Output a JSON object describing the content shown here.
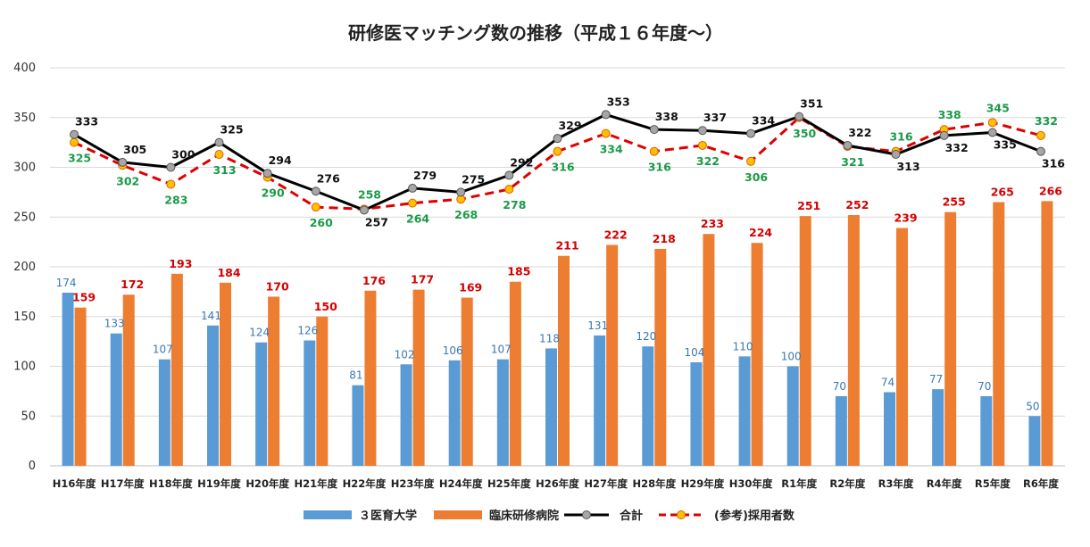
{
  "chart_data": {
    "type": "bar",
    "title": "研修医マッチング数の推移（平成１６年度〜）",
    "categories": [
      "H16年度",
      "H17年度",
      "H18年度",
      "H19年度",
      "H20年度",
      "H21年度",
      "H22年度",
      "H23年度",
      "H24年度",
      "H25年度",
      "H26年度",
      "H27年度",
      "H28年度",
      "H29年度",
      "H30年度",
      "R1年度",
      "R2年度",
      "R3年度",
      "R4年度",
      "R5年度",
      "R6年度"
    ],
    "ylim": [
      0,
      400
    ],
    "yticks": [
      "0",
      "50",
      "100",
      "150",
      "200",
      "250",
      "300",
      "350",
      "400"
    ],
    "grid": true,
    "legend_position": "bottom",
    "series": [
      {
        "name": "３医育大学",
        "kind": "bar",
        "color": "#5b9bd5",
        "label_color": "#3a78b5",
        "values": [
          174,
          133,
          107,
          141,
          124,
          126,
          81,
          102,
          106,
          107,
          118,
          131,
          120,
          104,
          110,
          100,
          70,
          74,
          77,
          70,
          50
        ]
      },
      {
        "name": "臨床研修病院",
        "kind": "bar",
        "color": "#ed7d31",
        "label_color": "#d40000",
        "values": [
          159,
          172,
          193,
          184,
          170,
          150,
          176,
          177,
          169,
          185,
          211,
          222,
          218,
          233,
          224,
          251,
          252,
          239,
          255,
          265,
          266
        ]
      },
      {
        "name": "合計",
        "kind": "line",
        "color": "#000000",
        "marker_color": "#a6a6a6",
        "label_color": "#111111",
        "values": [
          333,
          305,
          300,
          325,
          294,
          276,
          257,
          279,
          275,
          292,
          329,
          353,
          338,
          337,
          334,
          351,
          322,
          313,
          332,
          335,
          316
        ]
      },
      {
        "name": "(参考)採用者数",
        "kind": "dashed-line",
        "color": "#e00000",
        "marker_color": "#ffc000",
        "label_color": "#1a9a48",
        "values": [
          325,
          302,
          283,
          313,
          290,
          260,
          258,
          264,
          268,
          278,
          316,
          334,
          316,
          322,
          306,
          350,
          321,
          316,
          338,
          345,
          332
        ]
      }
    ]
  }
}
